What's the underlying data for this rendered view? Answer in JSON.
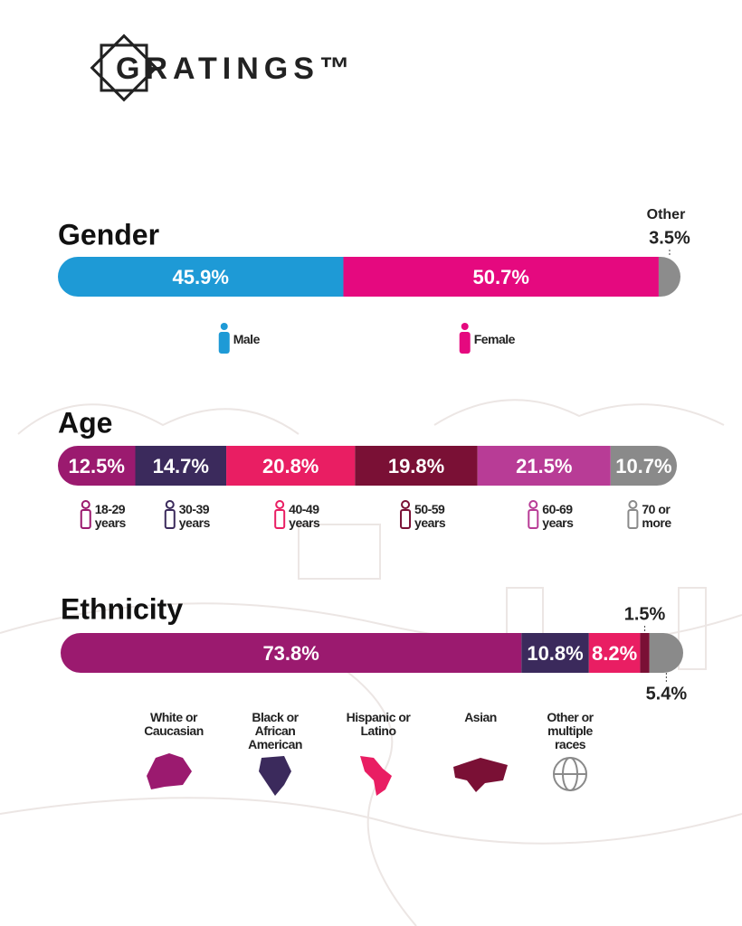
{
  "header": {
    "logo": "GRATINGS™"
  },
  "chart_data": [
    {
      "type": "bar",
      "title": "Gender",
      "series": [
        {
          "name": "Male",
          "color": "#1e9ad6",
          "values": [
            45.9
          ],
          "value_labels": [
            "45.9%"
          ]
        },
        {
          "name": "Female",
          "color": "#e5097f",
          "values": [
            50.7
          ],
          "value_labels": [
            "50.7%"
          ]
        },
        {
          "name": "Other",
          "color": "#8c8c8c",
          "values": [
            3.5
          ],
          "value_labels": [
            "3.5%"
          ]
        }
      ]
    },
    {
      "type": "bar",
      "title": "Age",
      "series": [
        {
          "name": "18-29 years",
          "color": "#9b1a6f",
          "values": [
            12.5
          ],
          "value_labels": [
            "12.5%"
          ]
        },
        {
          "name": "30-39 years",
          "color": "#3b2a5c",
          "values": [
            14.7
          ],
          "value_labels": [
            "14.7%"
          ]
        },
        {
          "name": "40-49 years",
          "color": "#e91e63",
          "values": [
            20.8
          ],
          "value_labels": [
            "20.8%"
          ]
        },
        {
          "name": "50-59 years",
          "color": "#7a1035",
          "values": [
            19.8
          ],
          "value_labels": [
            "19.8%"
          ]
        },
        {
          "name": "60-69 years",
          "color": "#b83c96",
          "values": [
            21.5
          ],
          "value_labels": [
            "21.5%"
          ]
        },
        {
          "name": "70 or more",
          "color": "#8a8a8a",
          "values": [
            10.7
          ],
          "value_labels": [
            "10.7%"
          ]
        }
      ]
    },
    {
      "type": "bar",
      "title": "Ethnicity",
      "series": [
        {
          "name": "White or Caucasian",
          "color": "#9b1a6f",
          "values": [
            73.8
          ],
          "value_labels": [
            "73.8%"
          ]
        },
        {
          "name": "Black or African American",
          "color": "#3b2a5c",
          "values": [
            10.8
          ],
          "value_labels": [
            "10.8%"
          ]
        },
        {
          "name": "Hispanic or Latino",
          "color": "#e91e63",
          "values": [
            8.2
          ],
          "value_labels": [
            "8.2%"
          ]
        },
        {
          "name": "Asian",
          "color": "#7a1035",
          "values": [
            1.5
          ],
          "value_labels": [
            "1.5%"
          ]
        },
        {
          "name": "Other or multiple races",
          "color": "#8a8a8a",
          "values": [
            5.4
          ],
          "value_labels": [
            "5.4%"
          ]
        }
      ]
    }
  ]
}
